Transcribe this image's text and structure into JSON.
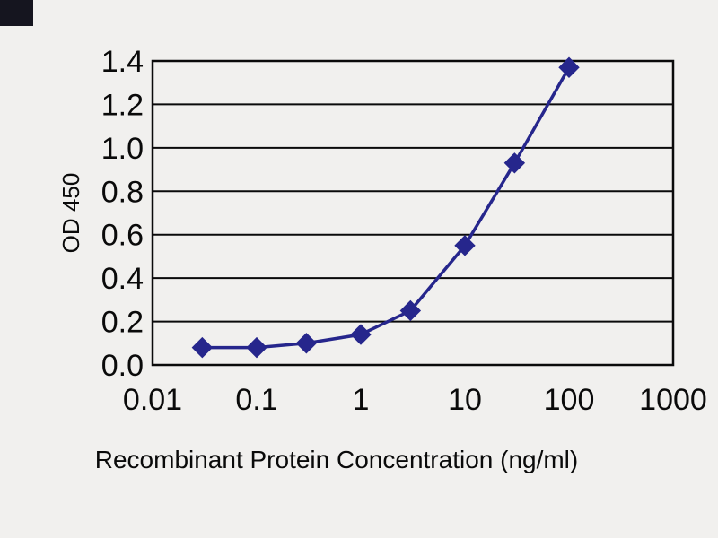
{
  "chart_data": {
    "type": "line",
    "title": "",
    "xlabel": "Recombinant Protein Concentration (ng/ml)",
    "ylabel": "OD 450",
    "x_scale": "log",
    "xlim": [
      0.01,
      1000
    ],
    "ylim": [
      0,
      1.4
    ],
    "grid": "horizontal",
    "legend": "none",
    "line_color": "#26268c",
    "marker": "diamond",
    "marker_color": "#26268c",
    "x": [
      0.03,
      0.1,
      0.3,
      1,
      3,
      10,
      30,
      100
    ],
    "y": [
      0.08,
      0.08,
      0.1,
      0.14,
      0.25,
      0.55,
      0.93,
      1.37
    ],
    "x_ticks": [
      {
        "value": 0.01,
        "label": "0.01"
      },
      {
        "value": 0.1,
        "label": "0.1"
      },
      {
        "value": 1,
        "label": "1"
      },
      {
        "value": 10,
        "label": "10"
      },
      {
        "value": 100,
        "label": "100"
      },
      {
        "value": 1000,
        "label": "1000"
      }
    ],
    "y_ticks": [
      {
        "value": 0.0,
        "label": "0.0"
      },
      {
        "value": 0.2,
        "label": "0.2"
      },
      {
        "value": 0.4,
        "label": "0.4"
      },
      {
        "value": 0.6,
        "label": "0.6"
      },
      {
        "value": 0.8,
        "label": "0.8"
      },
      {
        "value": 1.0,
        "label": "1.0"
      },
      {
        "value": 1.2,
        "label": "1.2"
      },
      {
        "value": 1.4,
        "label": "1.4"
      }
    ]
  }
}
